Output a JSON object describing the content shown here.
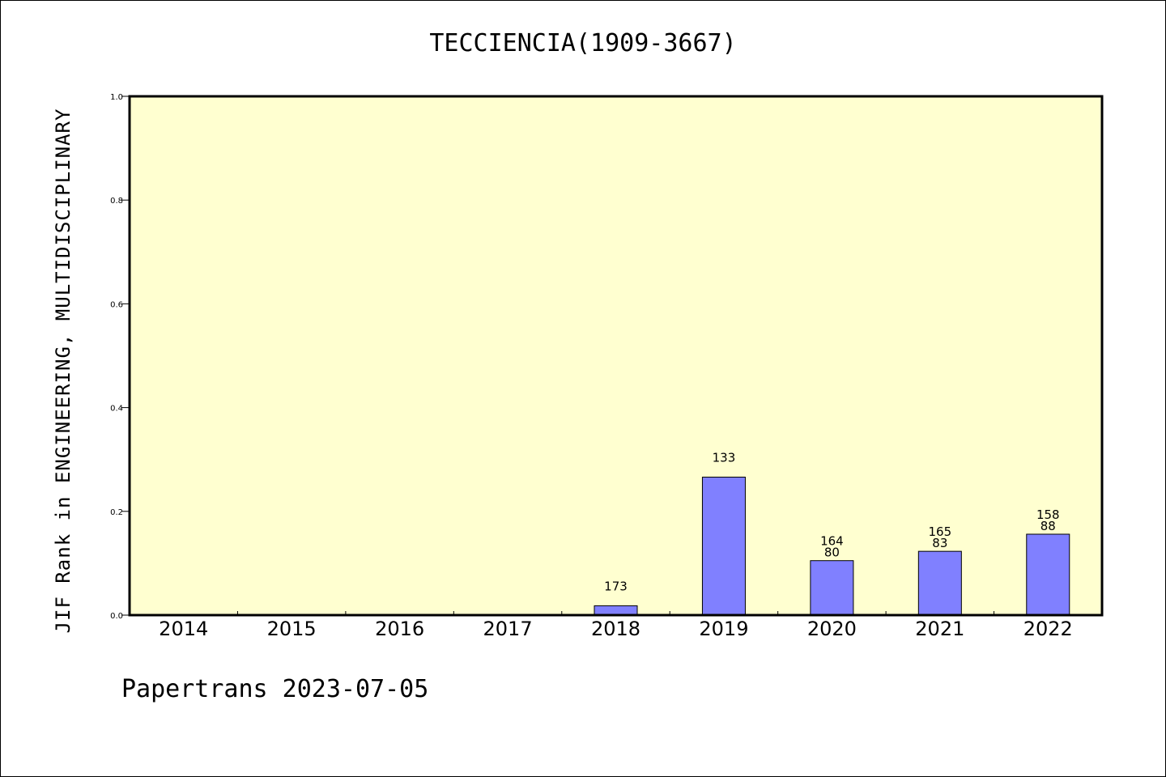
{
  "chart_data": {
    "type": "bar",
    "title": "TECCIENCIA(1909-3667)",
    "ylabel": "JIF Rank in ENGINEERING, MULTIDISCIPLINARY",
    "xlabel": "",
    "ylim": [
      0.0,
      1.0
    ],
    "yticks": [
      "0.0",
      "0.2",
      "0.4",
      "0.6",
      "0.8",
      "1.0"
    ],
    "categories": [
      "2014",
      "2015",
      "2016",
      "2017",
      "2018",
      "2019",
      "2020",
      "2021",
      "2022"
    ],
    "values": [
      null,
      null,
      null,
      null,
      0.018,
      0.266,
      0.105,
      0.123,
      0.156
    ],
    "bar_labels": [
      [],
      [],
      [],
      [],
      [
        "173"
      ],
      [
        "133"
      ],
      [
        "164",
        "80"
      ],
      [
        "165",
        "83"
      ],
      [
        "158",
        "88"
      ]
    ],
    "grid": false,
    "legend": "none",
    "colors": {
      "plot_background": "#ffffd0",
      "bar_fill": "#8080ff",
      "bar_edge": "#000000"
    }
  },
  "footer": "Papertrans 2023-07-05"
}
